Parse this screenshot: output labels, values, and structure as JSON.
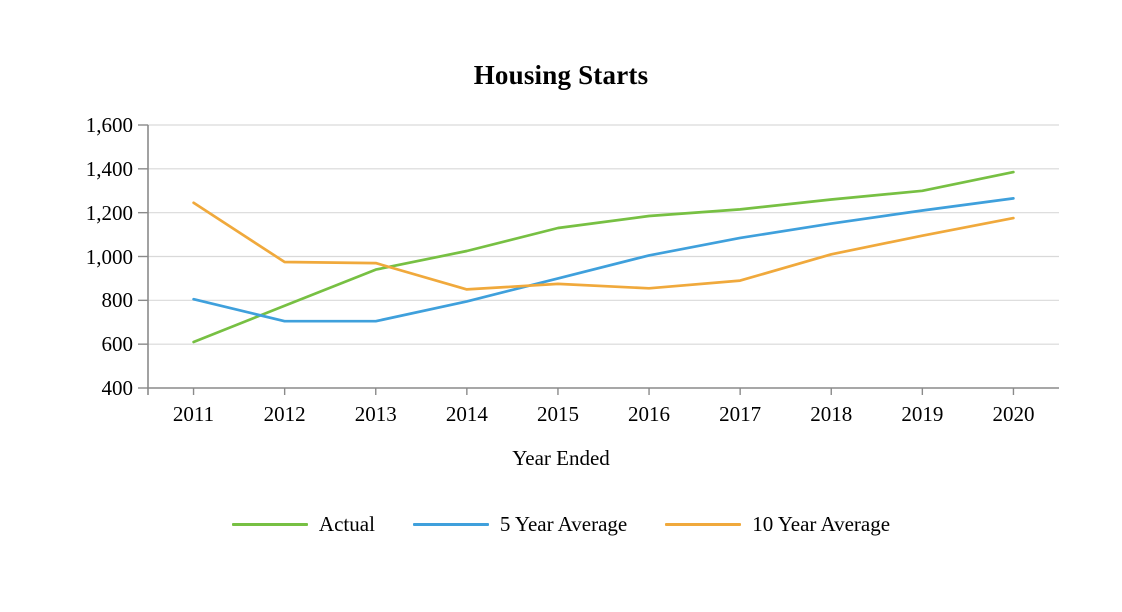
{
  "chart_data": {
    "type": "line",
    "title": "Housing Starts",
    "xlabel": "Year Ended",
    "ylabel": "",
    "categories": [
      "2011",
      "2012",
      "2013",
      "2014",
      "2015",
      "2016",
      "2017",
      "2018",
      "2019",
      "2020"
    ],
    "series": [
      {
        "name": "Actual",
        "color": "#77C043",
        "values": [
          610,
          775,
          940,
          1025,
          1130,
          1185,
          1215,
          1260,
          1300,
          1385
        ]
      },
      {
        "name": "5 Year Average",
        "color": "#3FA0DC",
        "values": [
          805,
          705,
          705,
          795,
          900,
          1005,
          1085,
          1150,
          1210,
          1265
        ]
      },
      {
        "name": "10 Year Average",
        "color": "#F0A93C",
        "values": [
          1245,
          975,
          970,
          850,
          875,
          855,
          890,
          1010,
          1095,
          1175
        ]
      }
    ],
    "ylim": [
      400,
      1600
    ],
    "ytick_step": 200,
    "ytick_labels": [
      "400",
      "600",
      "800",
      "1,000",
      "1,200",
      "1,400",
      "1,600"
    ],
    "grid": true,
    "legend_position": "bottom",
    "colors": {
      "gridline": "#D9D9D9",
      "axis": "#8A8A8A",
      "text": "#000000"
    }
  }
}
